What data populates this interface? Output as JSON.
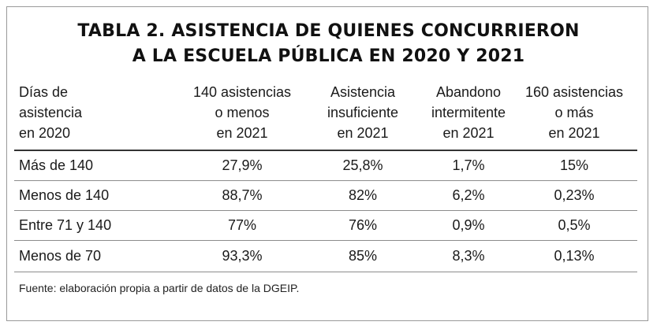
{
  "title": {
    "line1": "TABLA 2. ASISTENCIA DE QUIENES CONCURRIERON",
    "line2": "A LA ESCUELA PÚBLICA EN 2020 Y 2021"
  },
  "columns": [
    {
      "lines": [
        "Días de",
        "asistencia",
        "en 2020"
      ]
    },
    {
      "lines": [
        "140 asistencias",
        "o menos",
        "en 2021"
      ]
    },
    {
      "lines": [
        "Asistencia",
        "insuficiente",
        "en 2021"
      ]
    },
    {
      "lines": [
        "Abandono",
        "intermitente",
        "en 2021"
      ]
    },
    {
      "lines": [
        "160 asistencias",
        "o más",
        "en 2021"
      ]
    }
  ],
  "rows": [
    {
      "label": "Más de 140",
      "values": [
        "27,9%",
        "25,8%",
        "1,7%",
        "15%"
      ]
    },
    {
      "label": "Menos de 140",
      "values": [
        "88,7%",
        "82%",
        "6,2%",
        "0,23%"
      ]
    },
    {
      "label": "Entre 71 y 140",
      "values": [
        "77%",
        "76%",
        "0,9%",
        "0,5%"
      ]
    },
    {
      "label": "Menos de 70",
      "values": [
        "93,3%",
        "85%",
        "8,3%",
        "0,13%"
      ]
    }
  ],
  "source": "Fuente: elaboración propia a partir de datos de la DGEIP."
}
